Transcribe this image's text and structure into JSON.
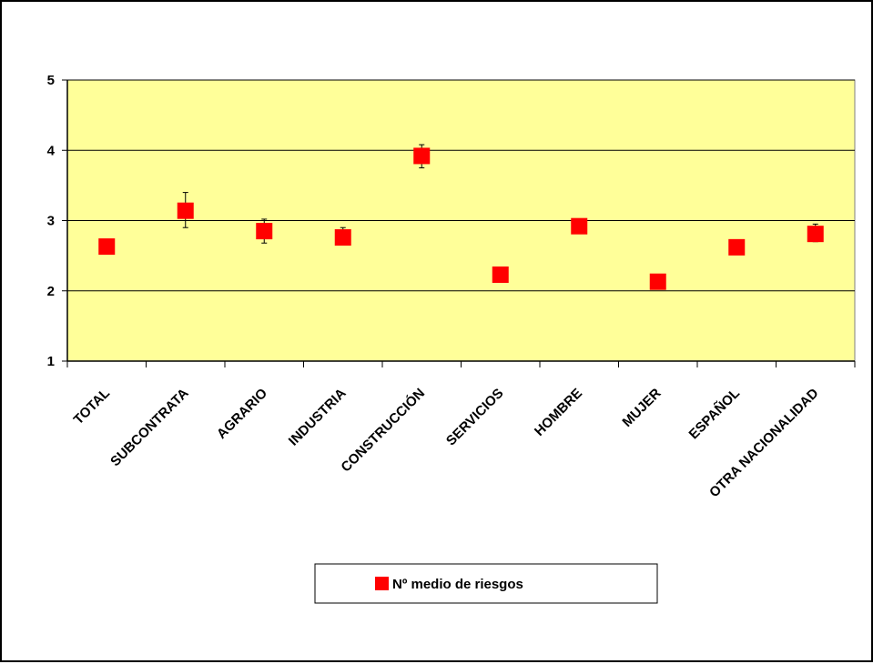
{
  "chart_data": {
    "type": "scatter",
    "categories": [
      "TOTAL",
      "SUBCONTRATA",
      "AGRARIO",
      "INDUSTRIA",
      "CONSTRUCCIÓN",
      "SERVICIOS",
      "HOMBRE",
      "MUJER",
      "ESPAÑOL",
      "OTRA NACIONALIDAD"
    ],
    "series": [
      {
        "name": "Nº medio de riesgos",
        "values": [
          2.63,
          3.14,
          2.85,
          2.76,
          3.92,
          2.23,
          2.92,
          2.13,
          2.62,
          2.81
        ],
        "error_low": [
          2.6,
          2.9,
          2.68,
          2.7,
          3.75,
          2.2,
          2.85,
          2.1,
          2.6,
          2.7
        ],
        "error_high": [
          2.66,
          3.4,
          3.02,
          2.9,
          4.08,
          2.26,
          3.0,
          2.16,
          2.64,
          2.95
        ],
        "marker": "square",
        "color": "#ff0000"
      }
    ],
    "yticks": [
      1,
      2,
      3,
      4,
      5
    ],
    "ylim": [
      1,
      5
    ],
    "grid": true,
    "plot_background": "#ffff99",
    "legend": {
      "position": "bottom"
    }
  }
}
